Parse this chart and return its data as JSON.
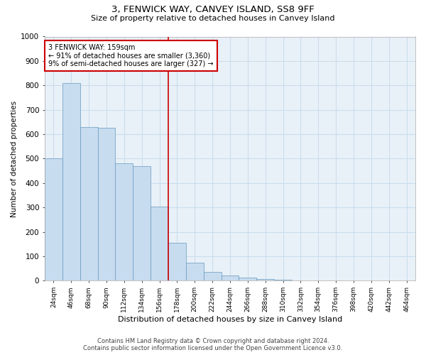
{
  "title": "3, FENWICK WAY, CANVEY ISLAND, SS8 9FF",
  "subtitle": "Size of property relative to detached houses in Canvey Island",
  "xlabel": "Distribution of detached houses by size in Canvey Island",
  "ylabel": "Number of detached properties",
  "footer_line1": "Contains HM Land Registry data © Crown copyright and database right 2024.",
  "footer_line2": "Contains public sector information licensed under the Open Government Licence v3.0.",
  "annotation_line1": "3 FENWICK WAY: 159sqm",
  "annotation_line2": "← 91% of detached houses are smaller (3,360)",
  "annotation_line3": "9% of semi-detached houses are larger (327) →",
  "bar_color": "#c8dcf0",
  "bar_edge_color": "#6699bb",
  "grid_color": "#c8dcea",
  "background_color": "#e8f0f8",
  "annotation_box_color": "#ffffff",
  "annotation_border_color": "#cc0000",
  "vline_color": "#cc0000",
  "categories": [
    "24sqm",
    "46sqm",
    "68sqm",
    "90sqm",
    "112sqm",
    "134sqm",
    "156sqm",
    "178sqm",
    "200sqm",
    "222sqm",
    "244sqm",
    "266sqm",
    "288sqm",
    "310sqm",
    "332sqm",
    "354sqm",
    "376sqm",
    "398sqm",
    "420sqm",
    "442sqm",
    "464sqm"
  ],
  "values": [
    500,
    810,
    630,
    625,
    480,
    470,
    305,
    155,
    75,
    35,
    22,
    12,
    6,
    3,
    1,
    1,
    0,
    0,
    0,
    0,
    1
  ],
  "ylim": [
    0,
    1000
  ],
  "yticks": [
    0,
    100,
    200,
    300,
    400,
    500,
    600,
    700,
    800,
    900,
    1000
  ],
  "vline_index": 6.5,
  "figwidth": 6.0,
  "figheight": 5.0,
  "dpi": 100
}
